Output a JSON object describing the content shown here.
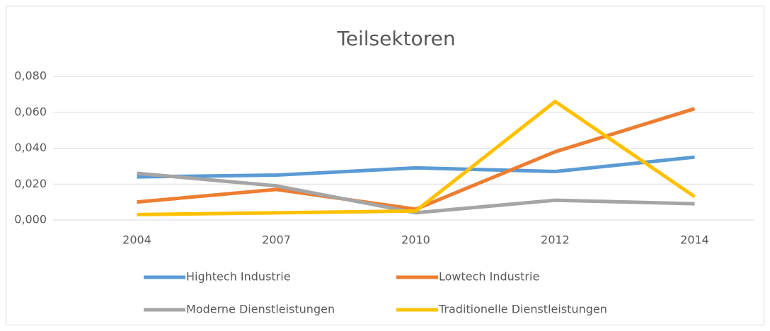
{
  "chart_data": {
    "type": "line",
    "title": "Teilsektoren",
    "categories": [
      "2004",
      "2007",
      "2010",
      "2012",
      "2014"
    ],
    "series": [
      {
        "name": "Hightech Industrie",
        "color": "#5b9bd5",
        "values": [
          0.024,
          0.025,
          0.029,
          0.027,
          0.035
        ]
      },
      {
        "name": "Lowtech Industrie",
        "color": "#ed7d31",
        "values": [
          0.01,
          0.017,
          0.006,
          0.038,
          0.062
        ]
      },
      {
        "name": "Moderne Dienstleistungen",
        "color": "#a5a5a5",
        "values": [
          0.026,
          0.019,
          0.004,
          0.011,
          0.009
        ]
      },
      {
        "name": "Traditionelle Dienstleistungen",
        "color": "#ffc000",
        "values": [
          0.003,
          0.004,
          0.005,
          0.066,
          0.013
        ]
      }
    ],
    "ylim": [
      0,
      0.08
    ],
    "yticks": [
      {
        "value": 0,
        "label": "0,000"
      },
      {
        "value": 0.02,
        "label": "0,020"
      },
      {
        "value": 0.04,
        "label": "0,040"
      },
      {
        "value": 0.06,
        "label": "0,060"
      },
      {
        "value": 0.08,
        "label": "0,080"
      }
    ],
    "grid": true
  }
}
